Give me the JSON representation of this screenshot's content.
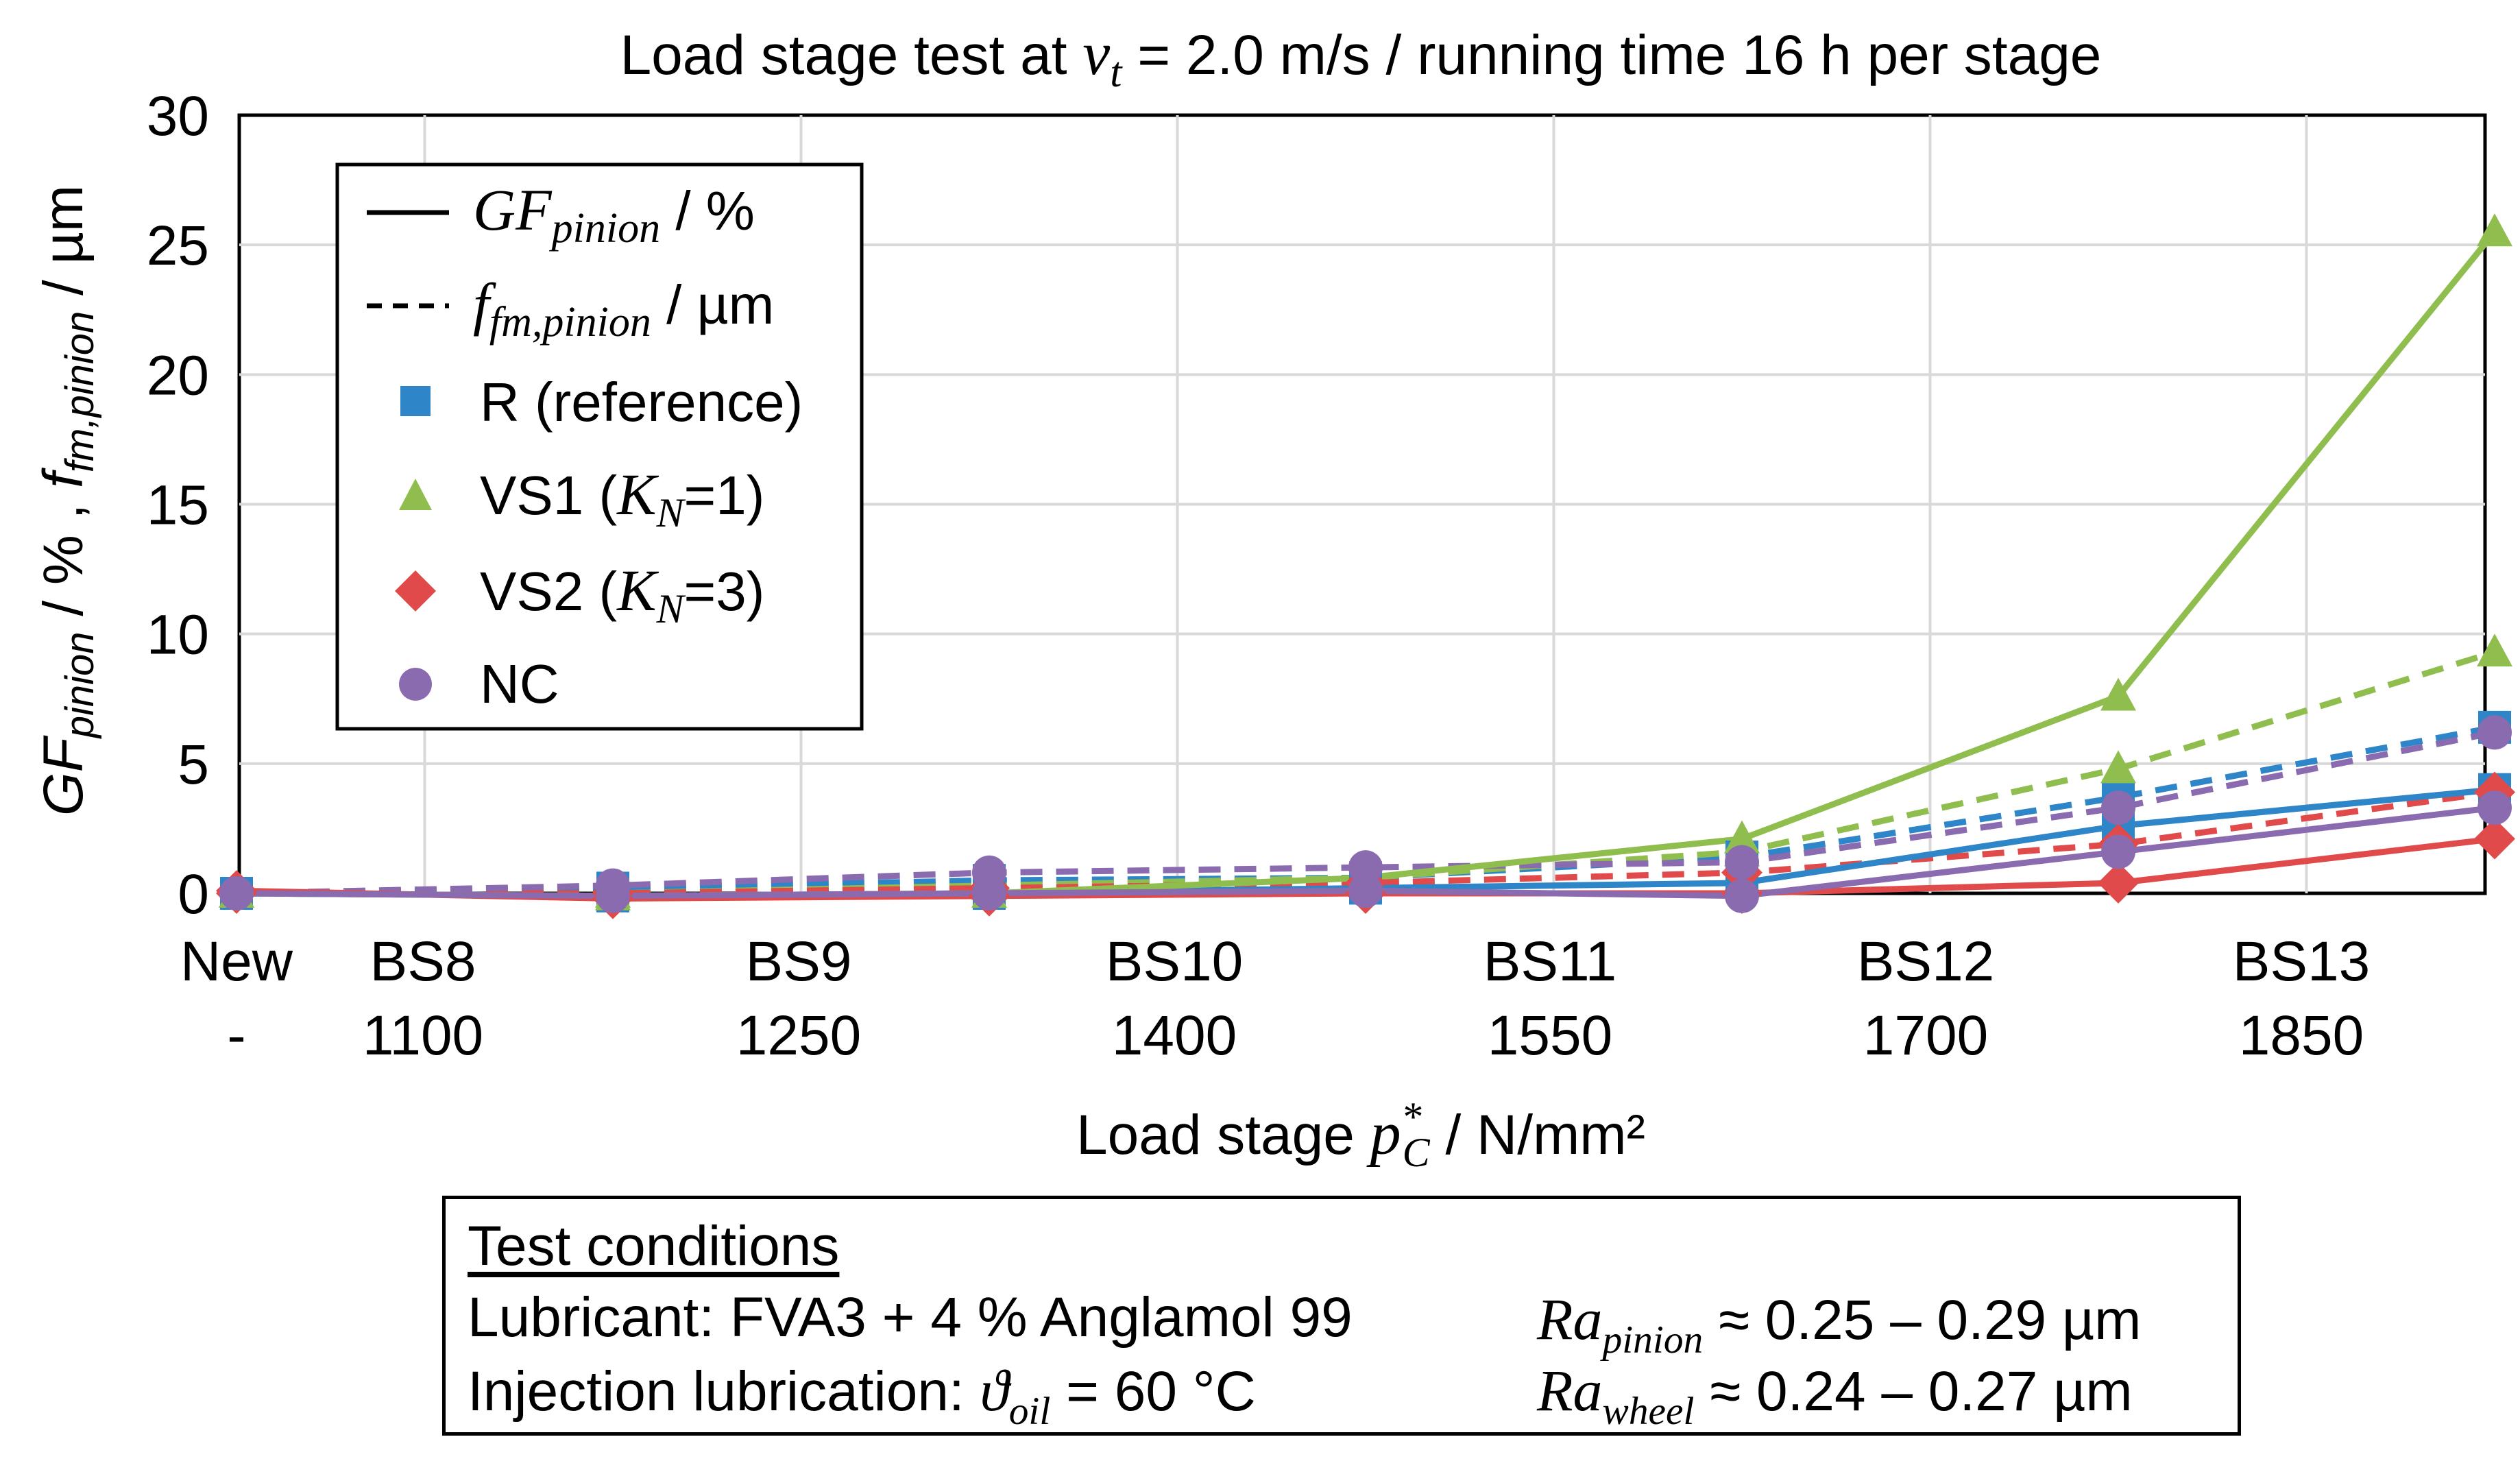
{
  "chart_data": {
    "type": "line",
    "title": {
      "pre": "Load stage test at ",
      "var_main": "v",
      "var_sub": "t",
      "post": " = 2.0 m/s / running time 16 h per stage"
    },
    "xlabel": {
      "pre": "Load stage ",
      "var_main": "p",
      "var_sup": "*",
      "var_sub": "C",
      "post": " / N/mm²"
    },
    "ylabel": {
      "gf_main": "GF",
      "gf_sub": "pinion",
      "mid": " / % , ",
      "ff_main": "f",
      "ff_sub": "fm,pinion",
      "post": " / µm"
    },
    "ylim": [
      0,
      30
    ],
    "yticks": [
      "0",
      "5",
      "10",
      "15",
      "20",
      "25",
      "30"
    ],
    "x_positions": [
      "New",
      "BS8",
      "BS9",
      "BS10",
      "BS11",
      "BS12",
      "BS13"
    ],
    "x_tick_labels": {
      "stage": [
        "New",
        "BS8",
        "BS9",
        "BS10",
        "BS11",
        "BS12",
        "BS13"
      ],
      "pressure": [
        "-",
        "1100",
        "1250",
        "1400",
        "1550",
        "1700",
        "1850"
      ]
    },
    "series": [
      {
        "name": "R (reference)",
        "color": "#2e86c9",
        "marker": "square",
        "metric": "GF_pinion",
        "values": [
          0.0,
          -0.1,
          0.0,
          0.2,
          0.4,
          2.6,
          4.0
        ]
      },
      {
        "name": "R (reference)",
        "color": "#2e86c9",
        "marker": "square",
        "metric": "f_fm,pinion",
        "values": [
          0.0,
          0.2,
          0.5,
          0.6,
          1.4,
          3.7,
          6.4
        ]
      },
      {
        "name": "VS1 (K_N=1)",
        "color": "#8fbe4e",
        "marker": "triangle",
        "metric": "GF_pinion",
        "values": [
          0.0,
          -0.1,
          0.0,
          0.6,
          2.1,
          7.6,
          25.5
        ]
      },
      {
        "name": "VS1 (K_N=1)",
        "color": "#8fbe4e",
        "marker": "triangle",
        "metric": "f_fm,pinion",
        "values": [
          0.0,
          0.0,
          0.3,
          0.6,
          1.6,
          4.8,
          9.3
        ]
      },
      {
        "name": "VS2 (K_N=3)",
        "color": "#e04a4a",
        "marker": "diamond",
        "metric": "GF_pinion",
        "values": [
          0.1,
          -0.2,
          -0.1,
          0.0,
          0.0,
          0.4,
          2.1
        ]
      },
      {
        "name": "VS2 (K_N=3)",
        "color": "#e04a4a",
        "marker": "diamond",
        "metric": "f_fm,pinion",
        "values": [
          0.0,
          0.0,
          0.2,
          0.4,
          0.8,
          1.9,
          3.9
        ]
      },
      {
        "name": "NC",
        "color": "#8b6bb0",
        "marker": "circle",
        "metric": "GF_pinion",
        "values": [
          0.0,
          -0.1,
          0.0,
          0.1,
          -0.1,
          1.6,
          3.3
        ]
      },
      {
        "name": "NC",
        "color": "#8b6bb0",
        "marker": "circle",
        "metric": "f_fm,pinion",
        "values": [
          0.0,
          0.3,
          0.8,
          1.0,
          1.2,
          3.3,
          6.2
        ]
      }
    ],
    "legend": {
      "position": "top-left",
      "line_styles": [
        {
          "style": "solid",
          "main": "GF",
          "sub": "pinion",
          "post": " / %"
        },
        {
          "style": "dashed",
          "main": "f",
          "sub": "fm,pinion",
          "post": " / µm"
        }
      ],
      "markers": [
        {
          "marker": "square",
          "color": "#2e86c9",
          "pre": "R (reference)",
          "var": "",
          "var_sub": "",
          "post": ""
        },
        {
          "marker": "triangle",
          "color": "#8fbe4e",
          "pre": "VS1 (",
          "var": "K",
          "var_sub": "N",
          "post": "=1)"
        },
        {
          "marker": "diamond",
          "color": "#e04a4a",
          "pre": "VS2 (",
          "var": "K",
          "var_sub": "N",
          "post": "=3)"
        },
        {
          "marker": "circle",
          "color": "#8b6bb0",
          "pre": "NC",
          "var": "",
          "var_sub": "",
          "post": ""
        }
      ]
    },
    "grid": true
  },
  "conditions": {
    "title": "Test conditions",
    "lubricant": "Lubricant: FVA3 + 4 % Anglamol 99",
    "injection_pre": "Injection lubrication: ",
    "injection_var": "ϑ",
    "injection_sub": "oil",
    "injection_post": " = 60 °C",
    "ra_main": "Ra",
    "ra_pinion_sub": "pinion",
    "ra_pinion_val": " ≈ 0.25 – 0.29 µm",
    "ra_wheel_sub": "wheel",
    "ra_wheel_val": " ≈ 0.24 – 0.27 µm"
  }
}
